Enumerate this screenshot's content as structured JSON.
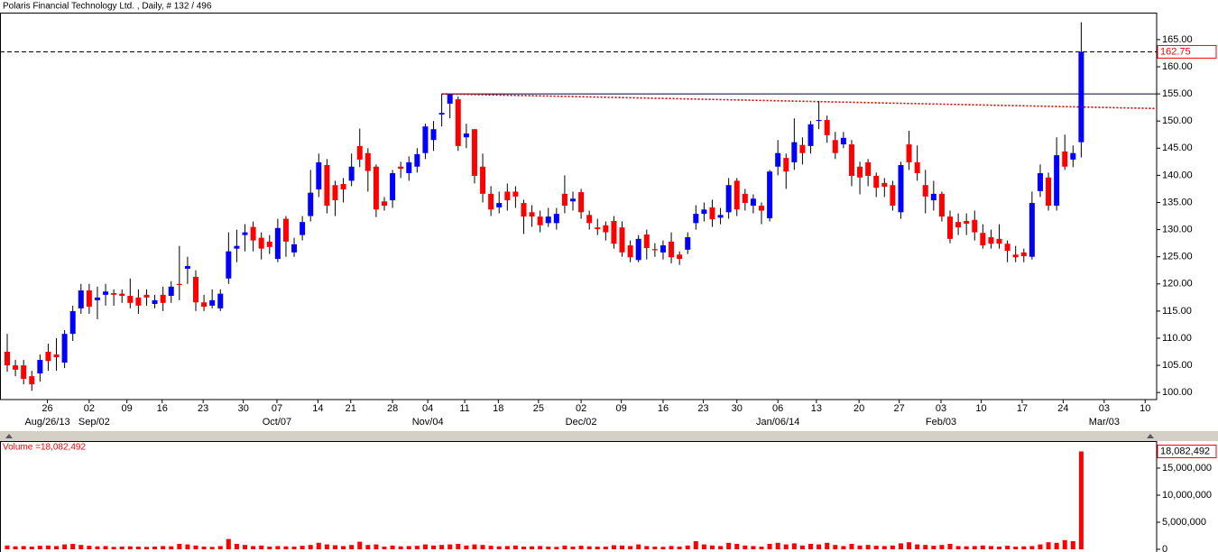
{
  "chart_data": {
    "type": "candlestick",
    "title": "Polaris Financial Technology Ltd. , Daily, # 132 / 496",
    "open": [
      107.5,
      105,
      105,
      103,
      103.5,
      107.5,
      107,
      105.5,
      110.8,
      115.5,
      118.8,
      117,
      118,
      118.3,
      118.2,
      117.8,
      117.5,
      118,
      116.3,
      118,
      117.8,
      120,
      122.8,
      121.3,
      116.6,
      116,
      115.5,
      121,
      126.5,
      129,
      130.5,
      128.5,
      127.8,
      124.6,
      132,
      125.8,
      129,
      132.5,
      137.4,
      141.9,
      138.2,
      138.4,
      139,
      145.4,
      144.1,
      141.6,
      135.2,
      135.4,
      141.6,
      140.4,
      141.6,
      144.1,
      146.5,
      151.2,
      153.2,
      154,
      147,
      148.5,
      141.6,
      136.6,
      134.1,
      137,
      137,
      134.9,
      133.2,
      132.4,
      131.2,
      131.2,
      136.6,
      135.2,
      136.9,
      132.7,
      130.4,
      130.8,
      131.6,
      130.4,
      127.1,
      124.4,
      129.1,
      126.4,
      125.8,
      127.8,
      125.4,
      126.3,
      131.2,
      132.9,
      134.1,
      132.2,
      133.2,
      139,
      136.6,
      134.4,
      134.4,
      132.1,
      141.6,
      143.2,
      142.4,
      145.6,
      145.4,
      150,
      150.2,
      146.5,
      145.7,
      145.7,
      141.6,
      142.4,
      139.9,
      138.6,
      138.2,
      133.2,
      145.7,
      142.4,
      138.2,
      135.4,
      136.6,
      132.4,
      131.4,
      131.6,
      131.8,
      129.4,
      128.6,
      128.3,
      127.4,
      125.4,
      125.8,
      125,
      137.1,
      139.6,
      134.4,
      144.4,
      142.9,
      146.1
    ],
    "high": [
      110.8,
      106,
      106,
      104,
      107,
      109,
      110,
      111.5,
      116,
      120,
      120,
      119.5,
      120,
      119,
      119,
      121,
      119,
      119,
      118,
      119.5,
      120.5,
      127,
      125,
      122.5,
      118,
      119,
      119,
      129.5,
      130,
      131,
      131.5,
      129.5,
      129,
      132,
      132.5,
      128.5,
      132.5,
      141,
      144,
      143,
      139,
      139.5,
      144,
      148.6,
      145,
      142,
      136,
      141,
      142.5,
      143.5,
      145,
      149.5,
      150,
      155,
      155,
      154.5,
      149.5,
      148.5,
      144,
      138,
      137,
      138.5,
      138,
      135.5,
      134.5,
      133.5,
      134,
      134,
      140,
      137,
      137.5,
      133.5,
      132,
      131.5,
      132.5,
      131.5,
      128,
      129,
      130,
      127.5,
      128,
      129.5,
      126,
      129.5,
      134.5,
      135,
      135.5,
      134,
      139.5,
      139.5,
      137.5,
      136.5,
      135,
      141,
      146.5,
      144,
      150.5,
      147,
      150,
      153.7,
      151,
      148,
      148,
      146.5,
      142.5,
      143,
      140.5,
      139.5,
      139,
      142.5,
      148.2,
      145.5,
      141,
      139,
      137,
      133.5,
      133,
      133,
      133.5,
      131,
      130,
      131,
      128,
      127,
      126.5,
      137,
      142,
      140.5,
      147,
      147.5,
      145.5,
      168.2
    ],
    "low": [
      103.8,
      103,
      101.5,
      100.3,
      102,
      104,
      104,
      104.5,
      109.5,
      114.5,
      114.5,
      113.5,
      116,
      116,
      116.5,
      115.5,
      114.5,
      116,
      115.5,
      115,
      116.5,
      117,
      120,
      115,
      115,
      115.5,
      115,
      120,
      124,
      126,
      126,
      124.5,
      125.5,
      124,
      125,
      125,
      128,
      131.5,
      136,
      133,
      132.5,
      135,
      138,
      141.5,
      137,
      132.3,
      133.5,
      134,
      139.5,
      139,
      140.5,
      143,
      144.5,
      149,
      150.5,
      144.5,
      145,
      138.5,
      135,
      132.5,
      133,
      133.5,
      134,
      129.2,
      130.5,
      129.5,
      130.5,
      130,
      133,
      133.5,
      132,
      130,
      129,
      128,
      126.5,
      125,
      124,
      124,
      124.5,
      125,
      124.5,
      123.8,
      123.5,
      125.5,
      130,
      131.5,
      130.5,
      131,
      132,
      132.5,
      133.5,
      133,
      131,
      131.5,
      140,
      137.5,
      141,
      142,
      144,
      148.5,
      146,
      143,
      145,
      138,
      136.5,
      138,
      136,
      136,
      133.5,
      132,
      141,
      139,
      133,
      133.5,
      131.5,
      127.5,
      129,
      129,
      128,
      126.5,
      126.5,
      126.5,
      124,
      124,
      124,
      124.5,
      136,
      133.5,
      133.5,
      141,
      141.5,
      143.3
    ],
    "close": [
      105,
      104.2,
      102.5,
      101.5,
      106,
      105.8,
      106.5,
      110.8,
      115,
      118.8,
      115.8,
      117.5,
      118.6,
      118,
      117.8,
      116.5,
      116,
      117.5,
      117,
      116.5,
      119.5,
      119.8,
      123.3,
      116.6,
      115.8,
      117,
      118.2,
      126,
      127,
      129.5,
      128,
      126.5,
      126.8,
      130.3,
      127.8,
      127.3,
      131.4,
      136.8,
      142.4,
      134.4,
      135.4,
      137.4,
      141.6,
      142.9,
      140.8,
      133.7,
      134.4,
      140.4,
      141.2,
      142.4,
      143.9,
      149,
      148.5,
      151.5,
      154.9,
      145.4,
      147.7,
      139.9,
      136.6,
      133.7,
      134.9,
      135.4,
      136.1,
      132.4,
      132.4,
      130.8,
      132.4,
      132.9,
      134.4,
      135.7,
      133.2,
      131.2,
      130.1,
      129.5,
      127.4,
      125.8,
      124.9,
      128.3,
      126.6,
      126.2,
      127.1,
      124.9,
      124.6,
      128.6,
      132.9,
      133.7,
      131.9,
      132.7,
      138.2,
      133.7,
      134.9,
      135.7,
      133.5,
      140.7,
      144.1,
      140.7,
      146.1,
      144.1,
      149.4,
      150.2,
      147.4,
      144.1,
      146.9,
      139.9,
      139.6,
      139.9,
      137.7,
      137.9,
      134.4,
      141.9,
      142.4,
      140.4,
      136.1,
      136.6,
      132.4,
      128.3,
      130.4,
      131.1,
      129.5,
      127.1,
      127.4,
      127.4,
      126.1,
      124.9,
      125.1,
      134.9,
      140.4,
      134.4,
      143.7,
      141.6,
      144.1,
      162.75
    ],
    "up_color": "#0000ff",
    "down_color": "#ff0000",
    "xlim": [
      -0.88,
      140.2
    ],
    "xticks": [
      {
        "value": 4.9,
        "label": "26"
      },
      {
        "value": 10.0,
        "label": "02"
      },
      {
        "value": 14.6,
        "label": "09"
      },
      {
        "value": 18.9,
        "label": "16"
      },
      {
        "value": 23.9,
        "label": "23"
      },
      {
        "value": 28.8,
        "label": "30"
      },
      {
        "value": 32.9,
        "label": "07"
      },
      {
        "value": 37.9,
        "label": "14"
      },
      {
        "value": 41.9,
        "label": "21"
      },
      {
        "value": 47.0,
        "label": "28"
      },
      {
        "value": 51.3,
        "label": "04"
      },
      {
        "value": 55.8,
        "label": "11"
      },
      {
        "value": 59.9,
        "label": "18"
      },
      {
        "value": 64.8,
        "label": "25"
      },
      {
        "value": 70.0,
        "label": "02"
      },
      {
        "value": 74.9,
        "label": "09"
      },
      {
        "value": 80.0,
        "label": "16"
      },
      {
        "value": 84.9,
        "label": "23"
      },
      {
        "value": 89.0,
        "label": "30"
      },
      {
        "value": 94.0,
        "label": "06"
      },
      {
        "value": 98.7,
        "label": "13"
      },
      {
        "value": 103.9,
        "label": "20"
      },
      {
        "value": 108.8,
        "label": "27"
      },
      {
        "value": 113.9,
        "label": "03"
      },
      {
        "value": 118.8,
        "label": "10"
      },
      {
        "value": 123.8,
        "label": "17"
      },
      {
        "value": 128.8,
        "label": "24"
      },
      {
        "value": 133.8,
        "label": "03"
      },
      {
        "value": 138.8,
        "label": "10"
      }
    ],
    "xticks_month": [
      {
        "value": 4.9,
        "label": "Aug/26/13"
      },
      {
        "value": 10.6,
        "label": "Sep/02"
      },
      {
        "value": 32.9,
        "label": "Oct/07"
      },
      {
        "value": 51.3,
        "label": "Nov/04"
      },
      {
        "value": 70.0,
        "label": "Dec/02"
      },
      {
        "value": 94.0,
        "label": "Jan/06/14"
      },
      {
        "value": 113.9,
        "label": "Feb/03"
      },
      {
        "value": 133.8,
        "label": "Mar/03"
      }
    ],
    "ylim": [
      98.7,
      169.8
    ],
    "yticks": [
      {
        "value": 100,
        "label": "100.00"
      },
      {
        "value": 105,
        "label": "105.00"
      },
      {
        "value": 110,
        "label": "110.00"
      },
      {
        "value": 115,
        "label": "115.00"
      },
      {
        "value": 120,
        "label": "120.00"
      },
      {
        "value": 125,
        "label": "125.00"
      },
      {
        "value": 130,
        "label": "130.00"
      },
      {
        "value": 135,
        "label": "135.00"
      },
      {
        "value": 140,
        "label": "140.00"
      },
      {
        "value": 145,
        "label": "145.00"
      },
      {
        "value": 150,
        "label": "150.00"
      },
      {
        "value": 155,
        "label": "155.00"
      },
      {
        "value": 160,
        "label": "160.00"
      },
      {
        "value": 165,
        "label": "165.00"
      }
    ],
    "last_price": 162.75,
    "resistance": {
      "x": [
        53,
        140.2
      ],
      "y": [
        155,
        155
      ],
      "color": "#000033"
    },
    "trendline": {
      "x": [
        53,
        140.2
      ],
      "y": [
        155,
        152.3
      ],
      "color": "#cc0000"
    },
    "volume": {
      "title": "Volume =18,082,492",
      "color": "#ff0000",
      "values": [
        700000,
        550000,
        600000,
        500000,
        650000,
        700000,
        600000,
        900000,
        1000000,
        800000,
        650000,
        550000,
        600000,
        450000,
        500000,
        550000,
        500000,
        450000,
        500000,
        600000,
        550000,
        1000000,
        900000,
        700000,
        500000,
        450000,
        600000,
        1900000,
        1000000,
        800000,
        600000,
        700000,
        500000,
        600000,
        550000,
        500000,
        650000,
        800000,
        1200000,
        900000,
        750000,
        600000,
        800000,
        1400000,
        800000,
        900000,
        500000,
        700000,
        550000,
        600000,
        650000,
        900000,
        700000,
        800000,
        900000,
        1000000,
        700000,
        900000,
        800000,
        650000,
        550000,
        600000,
        700000,
        500000,
        550000,
        600000,
        500000,
        450000,
        700000,
        500000,
        650000,
        550000,
        500000,
        500000,
        750000,
        700000,
        600000,
        900000,
        600000,
        500000,
        450000,
        600000,
        500000,
        700000,
        1500000,
        900000,
        700000,
        600000,
        1200000,
        1000000,
        700000,
        600000,
        500000,
        1000000,
        1200000,
        900000,
        1100000,
        700000,
        1000000,
        900000,
        1200000,
        800000,
        600000,
        1000000,
        700000,
        800000,
        650000,
        600000,
        700000,
        1100000,
        1300000,
        900000,
        800000,
        650000,
        800000,
        1000000,
        600000,
        550000,
        600000,
        700000,
        600000,
        500000,
        650000,
        500000,
        550000,
        600000,
        900000,
        1300000,
        1200000,
        1700000,
        1500000,
        18082492
      ],
      "last_label": "18,082,492",
      "ylim": [
        0,
        19830000
      ],
      "yticks": [
        0,
        {
          "value": 5000000,
          "label": "5,000,000"
        },
        {
          "value": 10000000,
          "label": "10,000,000"
        },
        {
          "value": 15000000,
          "label": "15,000,000"
        }
      ]
    }
  }
}
